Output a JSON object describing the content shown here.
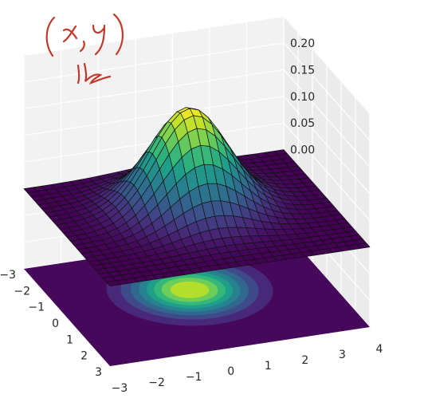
{
  "chart_data": {
    "type": "surface",
    "title": "",
    "xlabel": "",
    "ylabel": "",
    "zlabel": "",
    "xlim": [
      -3,
      4
    ],
    "ylim": [
      -3,
      3
    ],
    "zlim": [
      0,
      0.2
    ],
    "x_ticks": [
      "−3",
      "−2",
      "−1",
      "0",
      "1",
      "2",
      "3",
      "4"
    ],
    "y_ticks": [
      "−3",
      "−2",
      "−1",
      "0",
      "1",
      "2",
      "3"
    ],
    "z_ticks": [
      "0.00",
      "0.05",
      "0.10",
      "0.15",
      "0.20"
    ],
    "surface": {
      "function": "bivariate_gaussian",
      "mean": [
        0.5,
        -0.5
      ],
      "sigma": [
        1.0,
        1.0
      ],
      "peak": 0.19,
      "colormap": "viridis"
    },
    "contour_projection": {
      "offset": -0.15,
      "levels": 8,
      "colormap": "viridis"
    },
    "grid": true
  },
  "annotation": {
    "handwritten_text": "(x,y)",
    "color": "#c0392b"
  }
}
